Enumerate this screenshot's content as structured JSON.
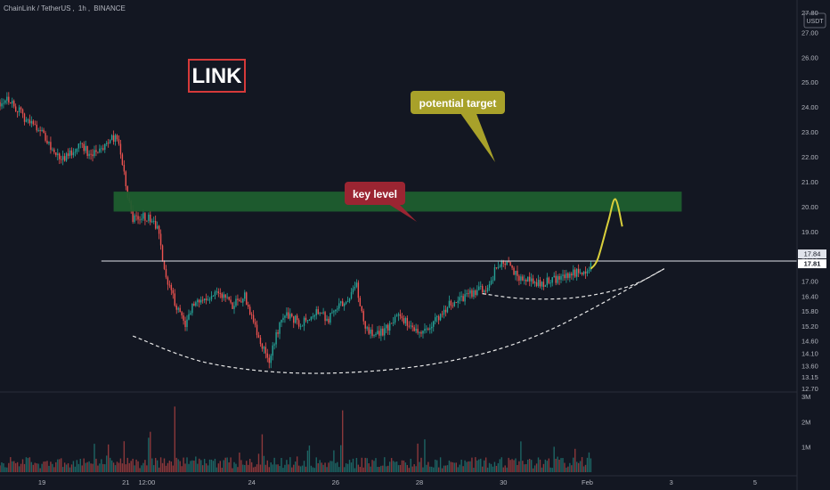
{
  "header": {
    "symbol": "ChainLink / TetherUS",
    "interval": "1h",
    "exchange": "BINANCE"
  },
  "colors": {
    "background": "#131722",
    "candle_up": "#26a69a",
    "candle_down": "#ef5350",
    "zone_fill": "#1e5e2f",
    "key_label_bg": "#9b2532",
    "target_label_bg": "#a8a12a",
    "forecast_path": "#d9cf3b",
    "axis_text": "#b2b5be"
  },
  "chart_data": {
    "type": "candlestick",
    "symbol": "ChainLink / TetherUS",
    "interval": "1h",
    "exchange": "BINANCE",
    "currency": "USDT",
    "y_range": [
      12.55,
      28.3
    ],
    "volume_range": [
      0,
      3000000
    ],
    "price_axis_ticks": [
      "27.80",
      "27.00",
      "26.00",
      "25.00",
      "24.00",
      "23.00",
      "22.00",
      "21.00",
      "20.00",
      "19.00",
      "18.00",
      "17.00",
      "16.40",
      "15.80",
      "15.20",
      "14.60",
      "14.10",
      "13.60",
      "13.15",
      "12.70"
    ],
    "volume_axis_ticks": [
      "3M",
      "2M",
      "1M"
    ],
    "time_axis_ticks": [
      "19",
      "21",
      "12:00",
      "24",
      "26",
      "28",
      "30",
      "Feb",
      "3",
      "5"
    ],
    "time_tick_hours": [
      24,
      72,
      84,
      144,
      192,
      240,
      288,
      336,
      384,
      432
    ],
    "hours_shown": 456,
    "price_path": [
      [
        0,
        24.2
      ],
      [
        4,
        24.4
      ],
      [
        10,
        23.9
      ],
      [
        16,
        23.4
      ],
      [
        22,
        23.2
      ],
      [
        28,
        22.5
      ],
      [
        34,
        21.9
      ],
      [
        40,
        22.1
      ],
      [
        46,
        22.6
      ],
      [
        52,
        22.0
      ],
      [
        58,
        22.3
      ],
      [
        64,
        22.8
      ],
      [
        68,
        22.6
      ],
      [
        72,
        20.8
      ],
      [
        76,
        19.5
      ],
      [
        84,
        19.6
      ],
      [
        90,
        19.2
      ],
      [
        94,
        17.4
      ],
      [
        98,
        16.6
      ],
      [
        102,
        15.8
      ],
      [
        106,
        15.3
      ],
      [
        112,
        16.3
      ],
      [
        120,
        16.2
      ],
      [
        126,
        16.6
      ],
      [
        132,
        16.0
      ],
      [
        140,
        16.4
      ],
      [
        146,
        15.2
      ],
      [
        150,
        14.4
      ],
      [
        154,
        13.8
      ],
      [
        158,
        14.9
      ],
      [
        164,
        15.7
      ],
      [
        172,
        15.3
      ],
      [
        180,
        15.8
      ],
      [
        188,
        15.5
      ],
      [
        196,
        16.1
      ],
      [
        204,
        16.8
      ],
      [
        208,
        15.3
      ],
      [
        212,
        14.9
      ],
      [
        220,
        15.0
      ],
      [
        228,
        15.6
      ],
      [
        236,
        15.1
      ],
      [
        244,
        15.0
      ],
      [
        250,
        15.5
      ],
      [
        256,
        16.0
      ],
      [
        264,
        16.3
      ],
      [
        272,
        16.6
      ],
      [
        280,
        16.8
      ],
      [
        284,
        17.6
      ],
      [
        290,
        17.7
      ],
      [
        296,
        17.2
      ],
      [
        304,
        17.0
      ],
      [
        310,
        16.9
      ],
      [
        318,
        17.1
      ],
      [
        326,
        17.3
      ],
      [
        334,
        17.4
      ],
      [
        338,
        17.6
      ]
    ],
    "volume_spikes": [
      [
        100,
        2600000
      ],
      [
        196,
        2450000
      ],
      [
        86,
        1600000
      ],
      [
        150,
        1500000
      ]
    ],
    "current_price": "17.81",
    "last_label": "17.84",
    "key_level_price": 17.81,
    "target_zone": {
      "low": 19.8,
      "high": 20.6,
      "x_start_hour": 65,
      "x_end_hour": 390
    },
    "forecast_path_points": [
      [
        338,
        17.5
      ],
      [
        342,
        17.9
      ],
      [
        348,
        19.4
      ],
      [
        352,
        20.3
      ],
      [
        356,
        19.2
      ]
    ],
    "support_arcs": [
      {
        "style": "dashed",
        "points": [
          [
            76,
            14.8
          ],
          [
            120,
            13.7
          ],
          [
            180,
            13.3
          ],
          [
            250,
            13.7
          ],
          [
            310,
            14.9
          ],
          [
            380,
            17.5
          ]
        ]
      },
      {
        "style": "dashed",
        "points": [
          [
            276,
            16.5
          ],
          [
            300,
            16.3
          ],
          [
            330,
            16.35
          ],
          [
            360,
            16.8
          ],
          [
            380,
            17.5
          ]
        ]
      }
    ],
    "annotations": [
      {
        "text": "LINK",
        "role": "title-box"
      },
      {
        "text": "key level",
        "role": "callout",
        "points_to": "key-level-line"
      },
      {
        "text": "potential target",
        "role": "callout",
        "points_to": "target-zone"
      }
    ]
  }
}
